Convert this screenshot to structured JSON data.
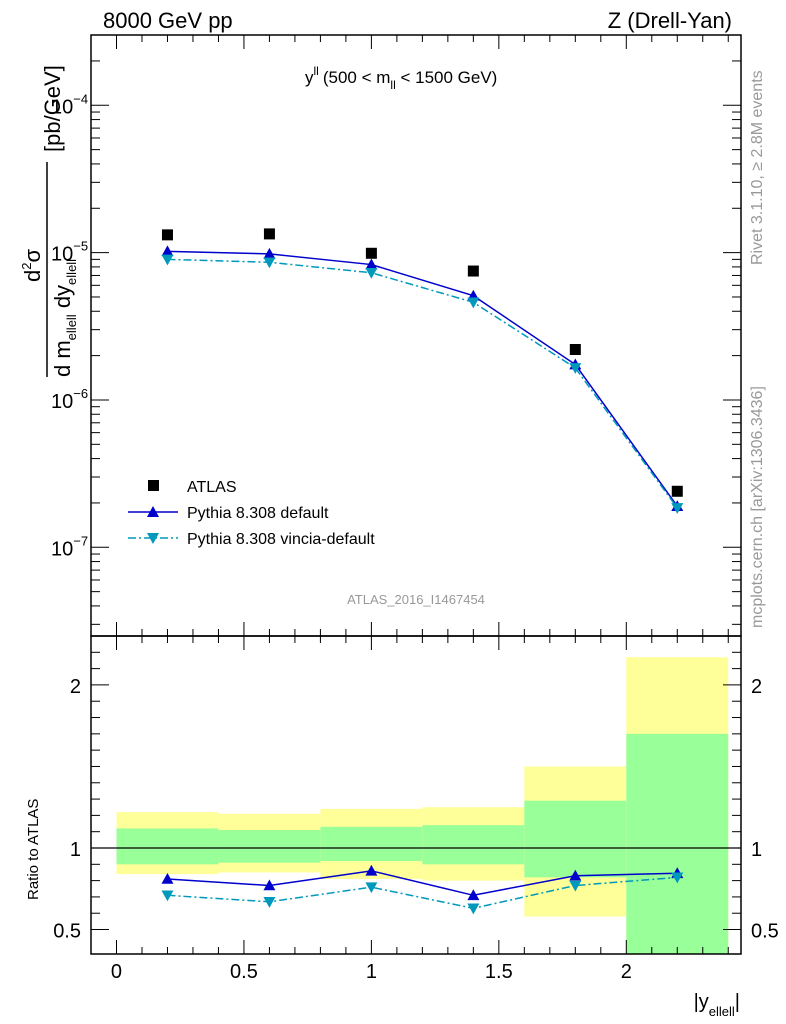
{
  "header": {
    "left": "8000 GeV pp",
    "right": "Z (Drell-Yan)"
  },
  "side_labels": {
    "rivet": "Rivet 3.1.10, ≥ 2.8M events",
    "mcplots": "mcplots.cern.ch [arXiv:1306.3436]"
  },
  "watermark": "ATLAS_2016_I1467454",
  "chart_data": [
    {
      "type": "scatter",
      "panel": "main",
      "title": {
        "main": "y",
        "sup": "ll",
        "range": "(500 < m",
        "sub": "ll",
        "range_end": " < 1500 GeV)"
      },
      "ylabel": {
        "num": "d",
        "num_sup": "2",
        "num_end": "σ",
        "den1": "d m",
        "den1_sub": "ellell",
        "den2": " dy",
        "den2_sub": "ellell",
        "unit": "[pb/GeV]"
      },
      "yscale": "log",
      "ylim": [
        2.5e-08,
        0.0003
      ],
      "xlim": [
        -0.1,
        2.45
      ],
      "yticks": [
        {
          "value": 1e-07,
          "base": "10",
          "exp": "−7"
        },
        {
          "value": 1e-06,
          "base": "10",
          "exp": "−6"
        },
        {
          "value": 1e-05,
          "base": "10",
          "exp": "−5"
        },
        {
          "value": 0.0001,
          "base": "10",
          "exp": "−4"
        }
      ],
      "series": [
        {
          "name": "ATLAS",
          "marker": "square",
          "color": "#000000",
          "x": [
            0.2,
            0.6,
            1.0,
            1.4,
            1.8,
            2.2
          ],
          "y": [
            1.32e-05,
            1.34e-05,
            9.9e-06,
            7.5e-06,
            2.2e-06,
            2.4e-07
          ]
        },
        {
          "name": "Pythia 8.308 default",
          "marker": "triangle-up",
          "line": "solid",
          "color": "#0000cc",
          "x": [
            0.2,
            0.6,
            1.0,
            1.4,
            1.8,
            2.2
          ],
          "y": [
            1.02e-05,
            9.8e-06,
            8.3e-06,
            5.1e-06,
            1.74e-06,
            1.9e-07
          ]
        },
        {
          "name": "Pythia 8.308 vincia-default",
          "marker": "triangle-down",
          "line": "dashdot",
          "color": "#0099bb",
          "x": [
            0.2,
            0.6,
            1.0,
            1.4,
            1.8,
            2.2
          ],
          "y": [
            9e-06,
            8.6e-06,
            7.3e-06,
            4.6e-06,
            1.65e-06,
            1.85e-07
          ]
        }
      ],
      "legend_position": "bottom-left"
    },
    {
      "type": "scatter",
      "panel": "ratio",
      "ylabel": "Ratio to ATLAS",
      "xlabel": {
        "main": "|y",
        "sub": "ellell",
        "end": "|"
      },
      "ylim": [
        0.35,
        2.3
      ],
      "xlim": [
        -0.1,
        2.45
      ],
      "xticks": [
        {
          "value": 0,
          "label": "0"
        },
        {
          "value": 0.5,
          "label": "0.5"
        },
        {
          "value": 1,
          "label": "1"
        },
        {
          "value": 1.5,
          "label": "1.5"
        },
        {
          "value": 2,
          "label": "2"
        }
      ],
      "yticks": [
        {
          "value": 0.5,
          "label": "0.5"
        },
        {
          "value": 1,
          "label": "1"
        },
        {
          "value": 2,
          "label": "2"
        }
      ],
      "bands": [
        {
          "x0": 0.0,
          "x1": 0.4,
          "outer": [
            0.84,
            1.22
          ],
          "inner": [
            0.9,
            1.12
          ]
        },
        {
          "x0": 0.4,
          "x1": 0.8,
          "outer": [
            0.85,
            1.21
          ],
          "inner": [
            0.91,
            1.11
          ]
        },
        {
          "x0": 0.8,
          "x1": 1.2,
          "outer": [
            0.81,
            1.24
          ],
          "inner": [
            0.92,
            1.13
          ]
        },
        {
          "x0": 1.2,
          "x1": 1.6,
          "outer": [
            0.8,
            1.25
          ],
          "inner": [
            0.9,
            1.14
          ]
        },
        {
          "x0": 1.6,
          "x1": 2.0,
          "outer": [
            0.58,
            1.5
          ],
          "inner": [
            0.82,
            1.29
          ]
        },
        {
          "x0": 2.0,
          "x1": 2.4,
          "outer": [
            0.35,
            2.17
          ],
          "inner": [
            0.35,
            1.7
          ]
        }
      ],
      "series": [
        {
          "name": "Pythia 8.308 default",
          "marker": "triangle-up",
          "line": "solid",
          "color": "#0000cc",
          "x": [
            0.2,
            0.6,
            1.0,
            1.4,
            1.8,
            2.2
          ],
          "y": [
            0.81,
            0.77,
            0.86,
            0.71,
            0.83,
            0.845
          ]
        },
        {
          "name": "Pythia 8.308 vincia-default",
          "marker": "triangle-down",
          "line": "dashdot",
          "color": "#0099bb",
          "x": [
            0.2,
            0.6,
            1.0,
            1.4,
            1.8,
            2.2
          ],
          "y": [
            0.71,
            0.67,
            0.76,
            0.63,
            0.77,
            0.82
          ]
        }
      ],
      "colors": {
        "outer_band": "#ffff99",
        "inner_band": "#99ff99"
      }
    }
  ]
}
